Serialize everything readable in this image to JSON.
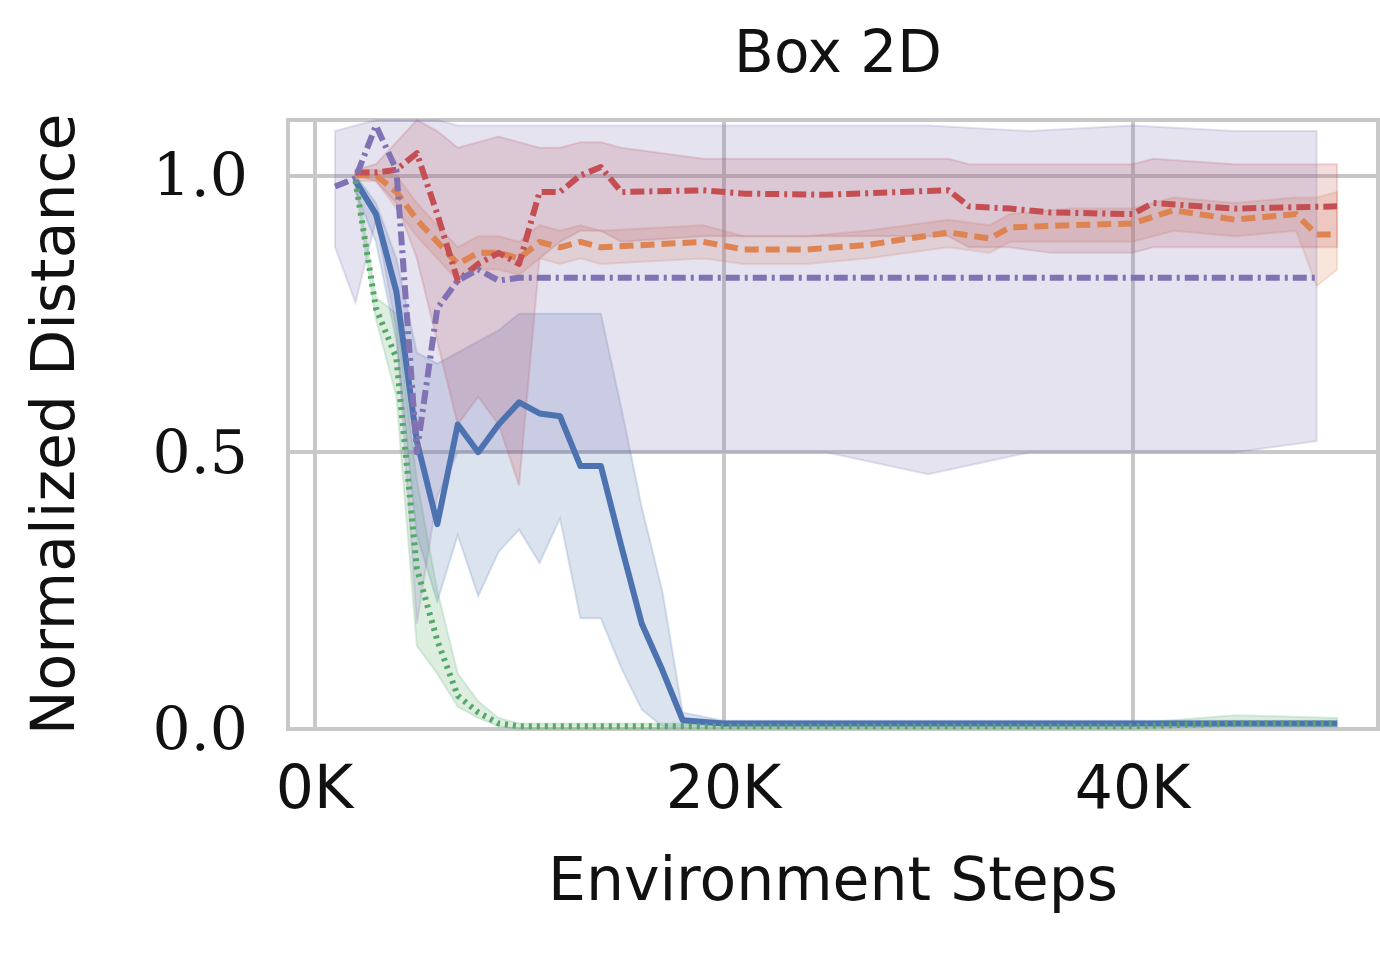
{
  "chart_data": {
    "type": "line",
    "title": "Box 2D",
    "xlabel": "Environment Steps",
    "ylabel": "Normalized Distance",
    "xlim": [
      -1300,
      52000
    ],
    "xticks": [
      {
        "value": 0,
        "label": "0K"
      },
      {
        "value": 20000,
        "label": "20K"
      },
      {
        "value": 40000,
        "label": "40K"
      }
    ],
    "ylim": [
      0,
      1.1
    ],
    "yticks": [
      {
        "value": 0,
        "label": "0.0"
      },
      {
        "value": 0.5,
        "label": "0.5"
      },
      {
        "value": 1,
        "label": "1.0"
      }
    ],
    "grid": true,
    "marker": "none",
    "series": [
      {
        "color": "#4c72b0",
        "line_style": "solid",
        "x": [
          2000,
          3000,
          4000,
          5000,
          6000,
          7000,
          8000,
          9000,
          10000,
          11000,
          12000,
          13000,
          14000,
          15000,
          16000,
          17000,
          18000,
          20000,
          25000,
          30000,
          35000,
          40000,
          45000,
          50000
        ],
        "values": [
          0.99,
          0.93,
          0.79,
          0.52,
          0.37,
          0.55,
          0.5,
          0.55,
          0.59,
          0.57,
          0.565,
          0.475,
          0.475,
          0.33,
          0.19,
          0.107,
          0.016,
          0.01,
          0.01,
          0.01,
          0.01,
          0.01,
          0.01,
          0.01
        ],
        "lower": [
          0.97,
          0.88,
          0.7,
          0.35,
          0.23,
          0.35,
          0.24,
          0.32,
          0.36,
          0.3,
          0.38,
          0.2,
          0.2,
          0.11,
          0.035,
          0.005,
          0.005,
          0.005,
          0.005,
          0.005,
          0.005,
          0.005,
          0.005,
          0.005
        ],
        "upper": [
          1.0,
          0.95,
          0.85,
          0.68,
          0.66,
          0.68,
          0.7,
          0.72,
          0.75,
          0.75,
          0.75,
          0.75,
          0.75,
          0.58,
          0.4,
          0.25,
          0.03,
          0.015,
          0.015,
          0.015,
          0.015,
          0.015,
          0.015,
          0.015
        ]
      },
      {
        "color": "#dd8452",
        "line_style": "dashed",
        "x": [
          2000,
          3000,
          4000,
          5000,
          6000,
          7000,
          8000,
          9000,
          10000,
          11000,
          12000,
          13000,
          14000,
          19000,
          21000,
          24000,
          27000,
          31000,
          33000,
          34000,
          37000,
          40000,
          42000,
          45000,
          48000,
          49000,
          50000
        ],
        "values": [
          1.0,
          1.0,
          0.97,
          0.92,
          0.88,
          0.84,
          0.86,
          0.86,
          0.85,
          0.88,
          0.87,
          0.88,
          0.87,
          0.88,
          0.866,
          0.866,
          0.874,
          0.897,
          0.886,
          0.906,
          0.91,
          0.913,
          0.937,
          0.92,
          0.93,
          0.893,
          0.893
        ],
        "lower": [
          0.99,
          0.99,
          0.94,
          0.89,
          0.85,
          0.81,
          0.83,
          0.83,
          0.82,
          0.85,
          0.84,
          0.85,
          0.84,
          0.85,
          0.84,
          0.84,
          0.85,
          0.87,
          0.86,
          0.88,
          0.88,
          0.88,
          0.9,
          0.89,
          0.9,
          0.8,
          0.83
        ],
        "upper": [
          1.01,
          1.01,
          1.0,
          0.95,
          0.91,
          0.87,
          0.89,
          0.89,
          0.88,
          0.91,
          0.9,
          0.91,
          0.9,
          0.91,
          0.89,
          0.89,
          0.9,
          0.92,
          0.91,
          0.93,
          0.94,
          0.94,
          0.96,
          0.95,
          0.96,
          0.96,
          0.97
        ]
      },
      {
        "color": "#55a868",
        "line_style": "dotted",
        "x": [
          2000,
          3000,
          4000,
          5000,
          6000,
          7000,
          8000,
          9000,
          10000,
          15000,
          20000,
          25000,
          30000,
          35000,
          40000,
          45000,
          50000
        ],
        "values": [
          0.99,
          0.76,
          0.67,
          0.29,
          0.16,
          0.06,
          0.03,
          0.01,
          0.005,
          0.005,
          0.005,
          0.005,
          0.005,
          0.005,
          0.005,
          0.01,
          0.01
        ],
        "lower": [
          0.98,
          0.74,
          0.6,
          0.15,
          0.1,
          0.04,
          0.02,
          0.005,
          0,
          0,
          0,
          0,
          0,
          0,
          0,
          0.005,
          0.005
        ],
        "upper": [
          1.0,
          0.78,
          0.75,
          0.45,
          0.25,
          0.1,
          0.05,
          0.02,
          0.01,
          0.01,
          0.01,
          0.01,
          0.01,
          0.01,
          0.01,
          0.025,
          0.02
        ]
      },
      {
        "color": "#c44e52",
        "line_style": "dashdot",
        "x": [
          2000,
          3000,
          4000,
          5000,
          6000,
          7000,
          8000,
          9000,
          10000,
          11000,
          12000,
          13000,
          14000,
          15000,
          19000,
          21000,
          25000,
          31000,
          32000,
          34000,
          36000,
          40000,
          41000,
          45000,
          50000
        ],
        "values": [
          1.005,
          1.005,
          1.01,
          1.04,
          0.93,
          0.81,
          0.84,
          0.86,
          0.84,
          0.97,
          0.97,
          1.0,
          1.015,
          0.97,
          0.973,
          0.967,
          0.965,
          0.973,
          0.944,
          0.94,
          0.933,
          0.93,
          0.95,
          0.94,
          0.944
        ],
        "lower": [
          1.0,
          0.99,
          0.95,
          0.85,
          0.7,
          0.55,
          0.6,
          0.55,
          0.44,
          0.85,
          0.88,
          0.9,
          0.9,
          0.88,
          0.89,
          0.89,
          0.89,
          0.89,
          0.87,
          0.87,
          0.86,
          0.86,
          0.87,
          0.87,
          0.87
        ],
        "upper": [
          1.01,
          1.02,
          1.06,
          1.1,
          1.08,
          1.05,
          1.06,
          1.07,
          1.06,
          1.05,
          1.05,
          1.06,
          1.06,
          1.05,
          1.03,
          1.03,
          1.03,
          1.03,
          1.02,
          1.02,
          1.02,
          1.02,
          1.03,
          1.02,
          1.02
        ]
      },
      {
        "color": "#8172b3",
        "line_style": "dashdot",
        "x": [
          1000,
          2000,
          3000,
          4000,
          5000,
          6000,
          7000,
          8000,
          9000,
          10000,
          15000,
          20000,
          25000,
          30000,
          35000,
          40000,
          45000,
          49000
        ],
        "values": [
          0.98,
          0.995,
          1.09,
          1.01,
          0.5,
          0.76,
          0.81,
          0.83,
          0.81,
          0.815,
          0.815,
          0.815,
          0.815,
          0.815,
          0.815,
          0.815,
          0.815,
          0.815
        ],
        "lower": [
          0.87,
          0.77,
          0.92,
          0.72,
          0.19,
          0.42,
          0.5,
          0.5,
          0.5,
          0.5,
          0.5,
          0.5,
          0.5,
          0.46,
          0.5,
          0.5,
          0.5,
          0.52
        ],
        "upper": [
          1.08,
          1.09,
          1.1,
          1.1,
          1.1,
          1.1,
          1.09,
          1.09,
          1.09,
          1.09,
          1.09,
          1.09,
          1.09,
          1.09,
          1.08,
          1.09,
          1.08,
          1.08
        ]
      }
    ]
  }
}
